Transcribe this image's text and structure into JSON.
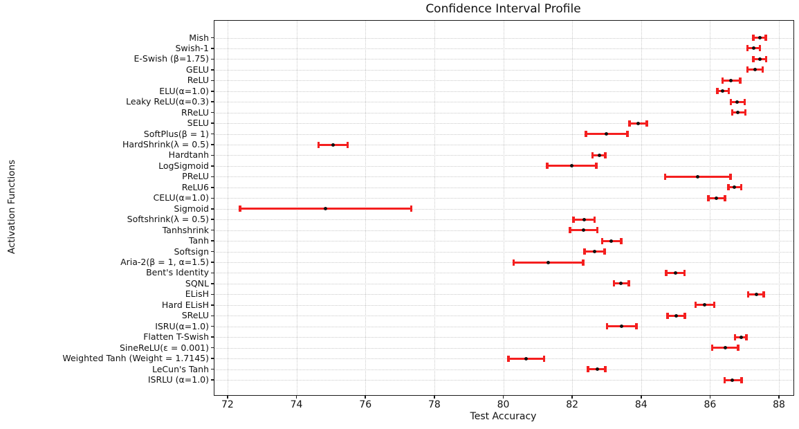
{
  "chart_data": {
    "type": "errorbar_horizontal",
    "title": "Confidence Interval Profile",
    "xlabel": "Test Accuracy",
    "ylabel": "Activation Functions",
    "xlim": [
      71.62,
      88.42
    ],
    "xticks": [
      72,
      74,
      76,
      78,
      80,
      82,
      84,
      86,
      88
    ],
    "grid": {
      "visible": true,
      "style": "dotted",
      "color": "#c9c9c9",
      "axes": "both"
    },
    "colors": {
      "bar": "#f41f1f",
      "marker": "#111111",
      "spine": "#1a1a1a",
      "text": "#111111",
      "background": "#ffffff"
    },
    "legend": "none",
    "points": [
      {
        "label": "Mish",
        "lo": 87.26,
        "mid": 87.45,
        "hi": 87.62
      },
      {
        "label": "Swish-1",
        "lo": 87.09,
        "mid": 87.27,
        "hi": 87.45
      },
      {
        "label": "E-Swish (β=1.75)",
        "lo": 87.26,
        "mid": 87.44,
        "hi": 87.63
      },
      {
        "label": "GELU",
        "lo": 87.09,
        "mid": 87.31,
        "hi": 87.53
      },
      {
        "label": "ReLU",
        "lo": 86.36,
        "mid": 86.61,
        "hi": 86.87
      },
      {
        "label": "ELU(α=1.0)",
        "lo": 86.21,
        "mid": 86.36,
        "hi": 86.54
      },
      {
        "label": "Leaky ReLU(α=0.3)",
        "lo": 86.6,
        "mid": 86.79,
        "hi": 87.0
      },
      {
        "label": "RReLU",
        "lo": 86.64,
        "mid": 86.81,
        "hi": 87.02
      },
      {
        "label": "SELU",
        "lo": 83.66,
        "mid": 83.91,
        "hi": 84.16
      },
      {
        "label": "SoftPlus(β = 1)",
        "lo": 82.4,
        "mid": 83.0,
        "hi": 83.6
      },
      {
        "label": "HardShrink(λ = 0.5)",
        "lo": 74.64,
        "mid": 75.06,
        "hi": 75.48
      },
      {
        "label": "Hardtanh",
        "lo": 82.59,
        "mid": 82.78,
        "hi": 82.96
      },
      {
        "label": "LogSigmoid",
        "lo": 81.27,
        "mid": 81.98,
        "hi": 82.7
      },
      {
        "label": "PReLU",
        "lo": 84.7,
        "mid": 85.65,
        "hi": 86.59
      },
      {
        "label": "ReLU6",
        "lo": 86.53,
        "mid": 86.71,
        "hi": 86.9
      },
      {
        "label": "CELU(α=1.0)",
        "lo": 85.95,
        "mid": 86.19,
        "hi": 86.43
      },
      {
        "label": "Sigmoid",
        "lo": 72.36,
        "mid": 74.84,
        "hi": 77.33
      },
      {
        "label": "Softshrink(λ = 0.5)",
        "lo": 82.04,
        "mid": 82.34,
        "hi": 82.65
      },
      {
        "label": "Tanhshrink",
        "lo": 81.94,
        "mid": 82.33,
        "hi": 82.73
      },
      {
        "label": "Tanh",
        "lo": 82.87,
        "mid": 83.14,
        "hi": 83.42
      },
      {
        "label": "Softsign",
        "lo": 82.36,
        "mid": 82.65,
        "hi": 82.94
      },
      {
        "label": "Aria-2(β = 1, α=1.5)",
        "lo": 80.3,
        "mid": 81.31,
        "hi": 82.32
      },
      {
        "label": "Bent's Identity",
        "lo": 84.73,
        "mid": 85.0,
        "hi": 85.26
      },
      {
        "label": "SQNL",
        "lo": 83.21,
        "mid": 83.42,
        "hi": 83.64
      },
      {
        "label": "ELisH",
        "lo": 87.11,
        "mid": 87.34,
        "hi": 87.56
      },
      {
        "label": "Hard ELisH",
        "lo": 85.58,
        "mid": 85.85,
        "hi": 86.12
      },
      {
        "label": "SReLU",
        "lo": 84.77,
        "mid": 85.02,
        "hi": 85.27
      },
      {
        "label": "ISRU(α=1.0)",
        "lo": 83.01,
        "mid": 83.44,
        "hi": 83.86
      },
      {
        "label": "Flatten T-Swish",
        "lo": 86.72,
        "mid": 86.91,
        "hi": 87.06
      },
      {
        "label": "SineReLU(ε = 0.001)",
        "lo": 86.06,
        "mid": 86.44,
        "hi": 86.81
      },
      {
        "label": "Weighted Tanh (Weight = 1.7145)",
        "lo": 80.15,
        "mid": 80.67,
        "hi": 81.18
      },
      {
        "label": "LeCun's Tanh",
        "lo": 82.46,
        "mid": 82.72,
        "hi": 82.96
      },
      {
        "label": "ISRLU (α=1.0)",
        "lo": 86.42,
        "mid": 86.65,
        "hi": 86.91
      }
    ]
  }
}
